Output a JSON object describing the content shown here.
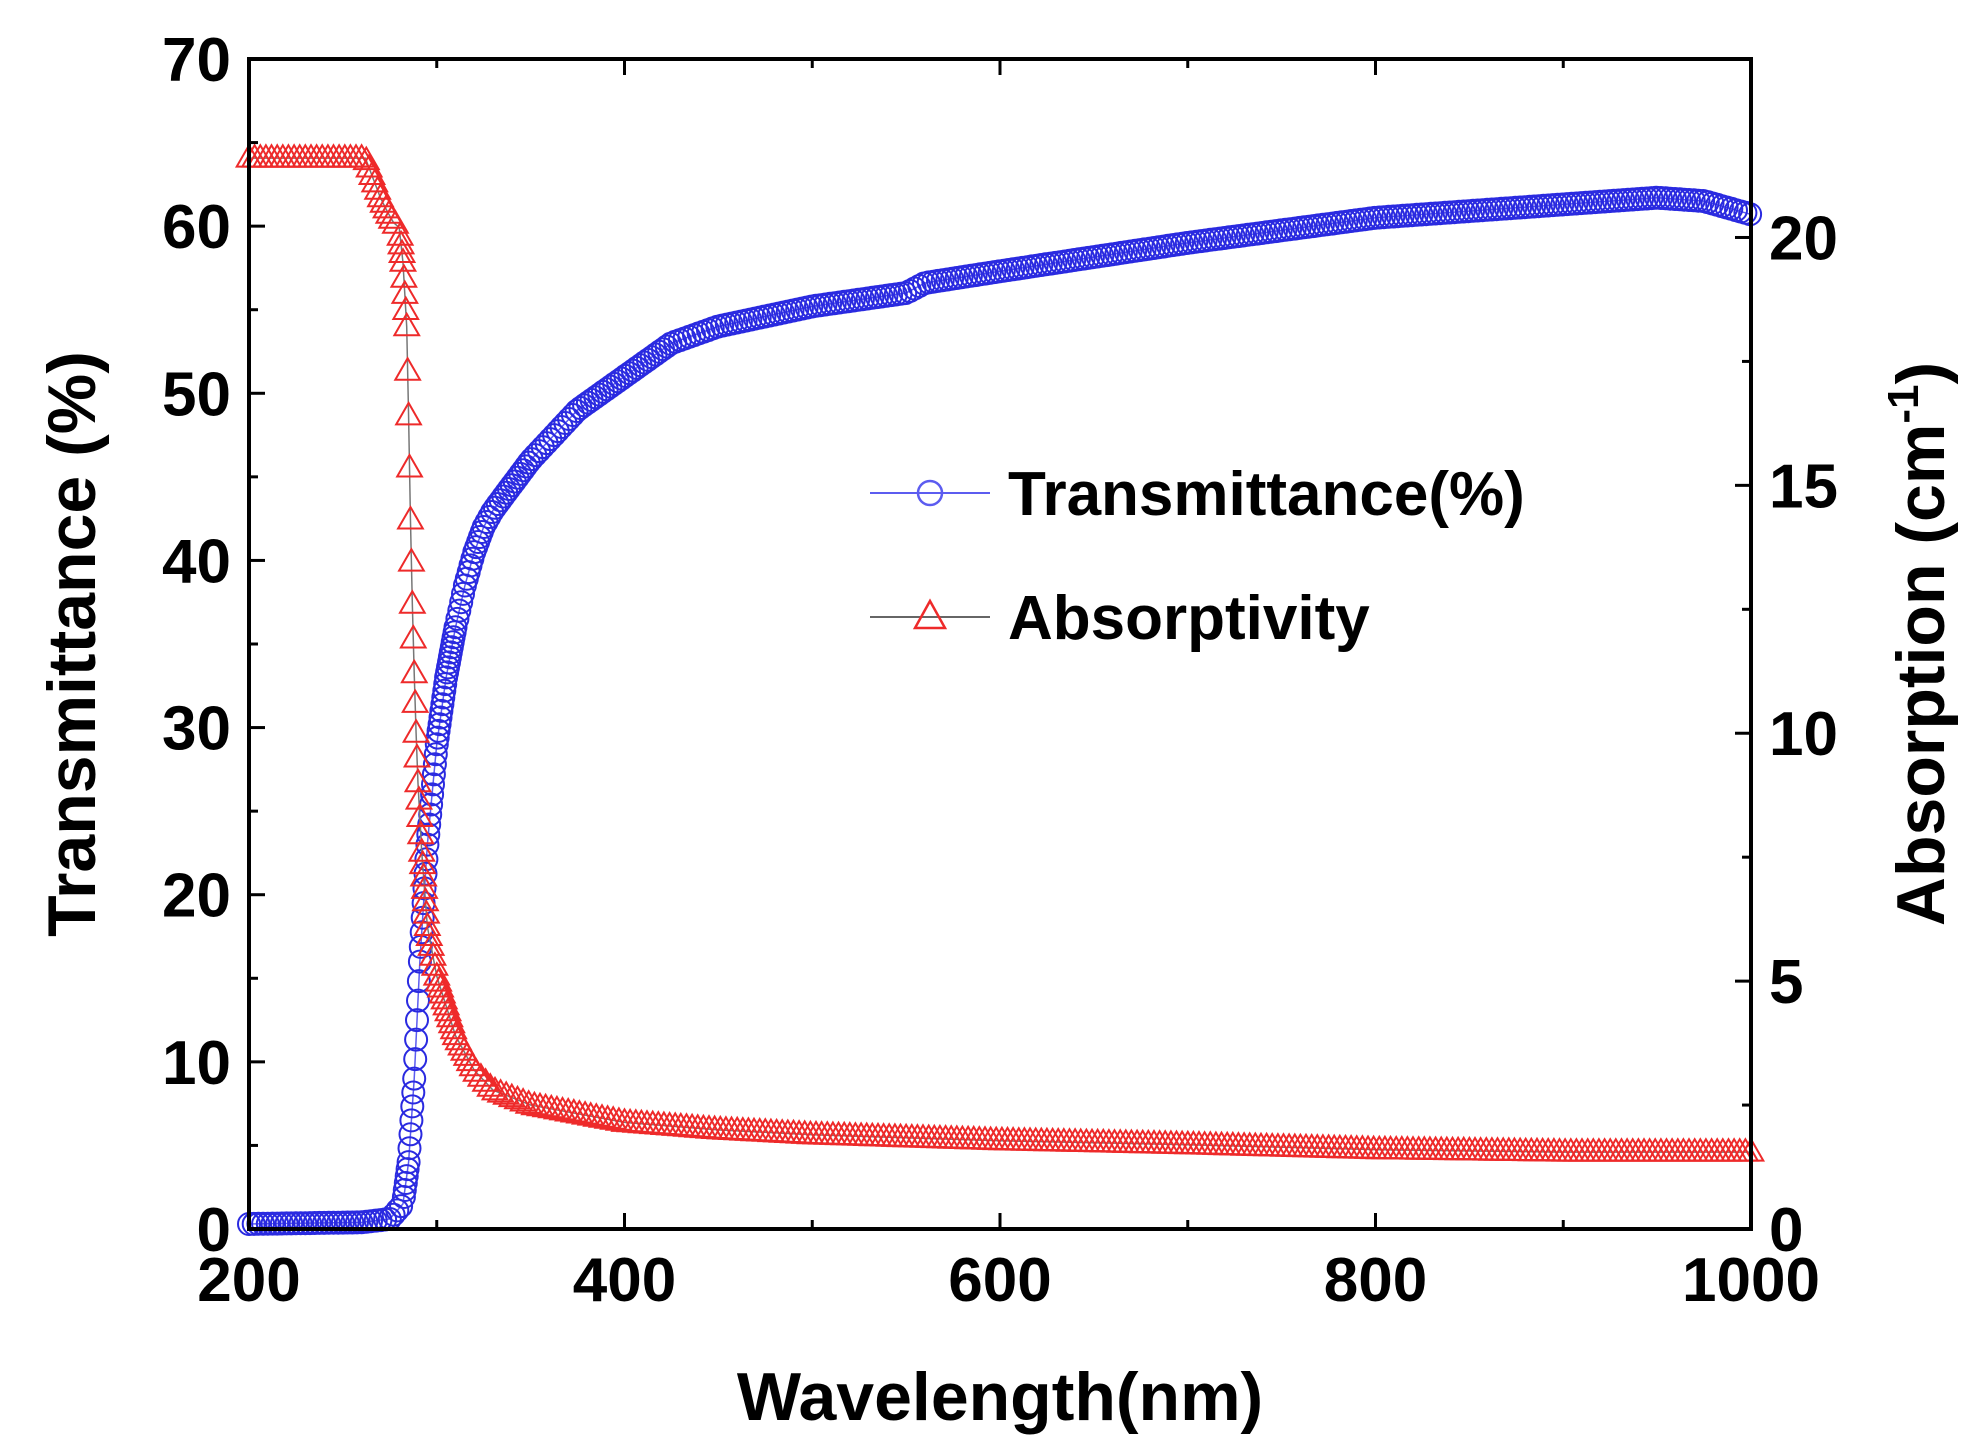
{
  "chart_data": {
    "type": "line",
    "xlabel": "Wavelength(nm)",
    "ylabel_left": "Transmittance (%)",
    "ylabel_right": {
      "main": "Absorption (cm",
      "sup": "-1",
      "close": ")"
    },
    "xlim": [
      200,
      1000
    ],
    "ylim_left": [
      0,
      70
    ],
    "ylim_right": [
      0,
      23.6
    ],
    "xticks": [
      200,
      400,
      600,
      800,
      1000
    ],
    "xtick_labels": [
      "200",
      "400",
      "600",
      "800",
      "1000"
    ],
    "yticks_left": [
      0,
      10,
      20,
      30,
      40,
      50,
      60,
      70
    ],
    "ytick_labels_left": [
      "0",
      "10",
      "20",
      "30",
      "40",
      "50",
      "60",
      "70"
    ],
    "yticks_right": [
      0,
      5,
      10,
      15,
      20
    ],
    "ytick_labels_right": [
      "0",
      "5",
      "10",
      "15",
      "20"
    ],
    "grid": false,
    "legend_position": "center-right",
    "series": [
      {
        "name": "Transmittance(%)",
        "axis": "left",
        "marker": "circle",
        "color": "#2a2ae0",
        "x": [
          200,
          260,
          275,
          282,
          285,
          288,
          291,
          295,
          300,
          305,
          310,
          315,
          320,
          325,
          330,
          340,
          350,
          375,
          400,
          425,
          450,
          500,
          550,
          560,
          600,
          700,
          800,
          900,
          950,
          975,
          1000
        ],
        "y": [
          0.3,
          0.4,
          0.6,
          1.5,
          4,
          9,
          16,
          23,
          29,
          33,
          36,
          38.5,
          40.5,
          42,
          43,
          44.5,
          46,
          49,
          51,
          53,
          54,
          55.2,
          56,
          56.6,
          57.3,
          59,
          60.5,
          61.3,
          61.7,
          61.5,
          60.7
        ]
      },
      {
        "name": "Absorptivity",
        "axis": "right",
        "marker": "triangle",
        "color": "#ee2a2a",
        "x": [
          200,
          262,
          266,
          270,
          274,
          277,
          280,
          282,
          284,
          285,
          286,
          287,
          288,
          289,
          290,
          291,
          292,
          293,
          294,
          295,
          297,
          300,
          305,
          310,
          320,
          330,
          350,
          400,
          450,
          500,
          600,
          700,
          800,
          900,
          1000
        ],
        "y": [
          21.6,
          21.6,
          21.2,
          20.8,
          20.5,
          20.3,
          20.2,
          19.5,
          18.2,
          16.4,
          14.3,
          12.6,
          11.2,
          10,
          9,
          8.3,
          7.6,
          7.1,
          6.6,
          6.1,
          5.7,
          5.1,
          4.5,
          3.9,
          3.2,
          2.8,
          2.5,
          2.15,
          2,
          1.9,
          1.78,
          1.7,
          1.6,
          1.55,
          1.55
        ]
      }
    ]
  }
}
